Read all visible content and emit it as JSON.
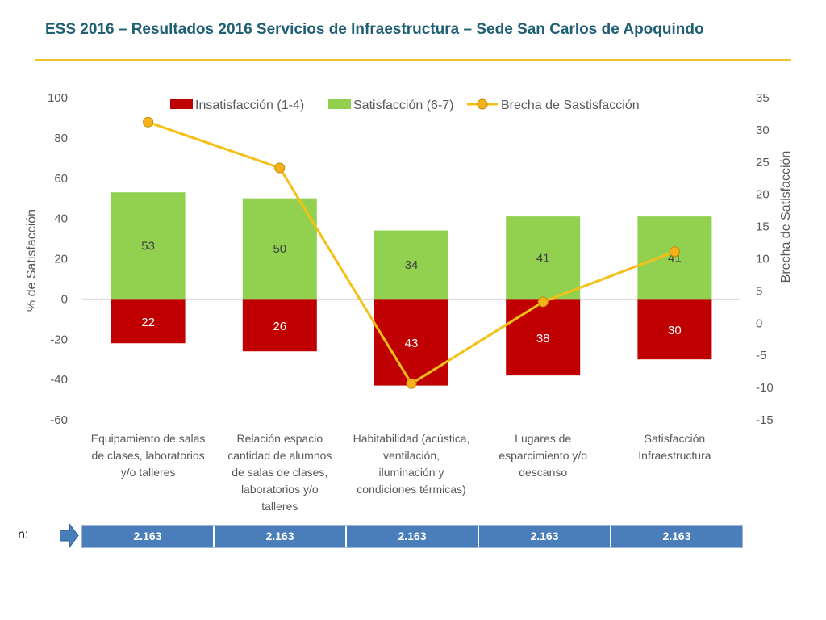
{
  "title": "ESS 2016 – Resultados 2016 Servicios de Infraestructura – Sede San Carlos de Apoquindo",
  "colors": {
    "insat": "#c00000",
    "sat": "#92d050",
    "gap": "#f5c016",
    "gap_marker": "#f5b21a",
    "title": "#1f5f73",
    "rule": "#f2c12e",
    "n_cell": "#4a7ebb"
  },
  "chart_data": {
    "type": "bar",
    "categories": [
      [
        "Equipamiento de salas",
        "de clases, laboratorios",
        "y/o talleres"
      ],
      [
        "Relación espacio",
        "cantidad de alumnos",
        "de salas de clases,",
        "laboratorios y/o",
        "talleres"
      ],
      [
        "Habitabilidad (acústica,",
        "ventilación,",
        "iluminación y",
        "condiciones térmicas)"
      ],
      [
        "Lugares de",
        "esparcimiento y/o",
        "descanso"
      ],
      [
        "Satisfacción",
        "Infraestructura"
      ]
    ],
    "series": [
      {
        "name": "Insatisfacción (1-4)",
        "kind": "bar",
        "values": [
          -22,
          -26,
          -43,
          -38,
          -30
        ],
        "labels": [
          "22",
          "26",
          "43",
          "38",
          "30"
        ]
      },
      {
        "name": "Satisfacción (6-7)",
        "kind": "bar",
        "values": [
          53,
          50,
          34,
          41,
          41
        ],
        "labels": [
          "53",
          "50",
          "34",
          "41",
          "41"
        ]
      },
      {
        "name": "Brecha de Sastisfacción",
        "kind": "line",
        "axis": "right",
        "values": [
          31.2,
          24.1,
          -9.4,
          3.3,
          11.1
        ]
      }
    ],
    "ylabel": "% de Satisfacción",
    "y2label": "Brecha de Satisfacción",
    "ylim": [
      -60,
      100
    ],
    "yticks": [
      "100",
      "80",
      "60",
      "40",
      "20",
      "0",
      "-20",
      "-40",
      "-60"
    ],
    "y2lim": [
      -15,
      35
    ],
    "y2ticks": [
      "35",
      "30",
      "25",
      "20",
      "15",
      "10",
      "5",
      "0",
      "-5",
      "-10",
      "-15"
    ],
    "legend_position": "top"
  },
  "n_row": {
    "label": "n:",
    "values": [
      "2.163",
      "2.163",
      "2.163",
      "2.163",
      "2.163"
    ]
  }
}
